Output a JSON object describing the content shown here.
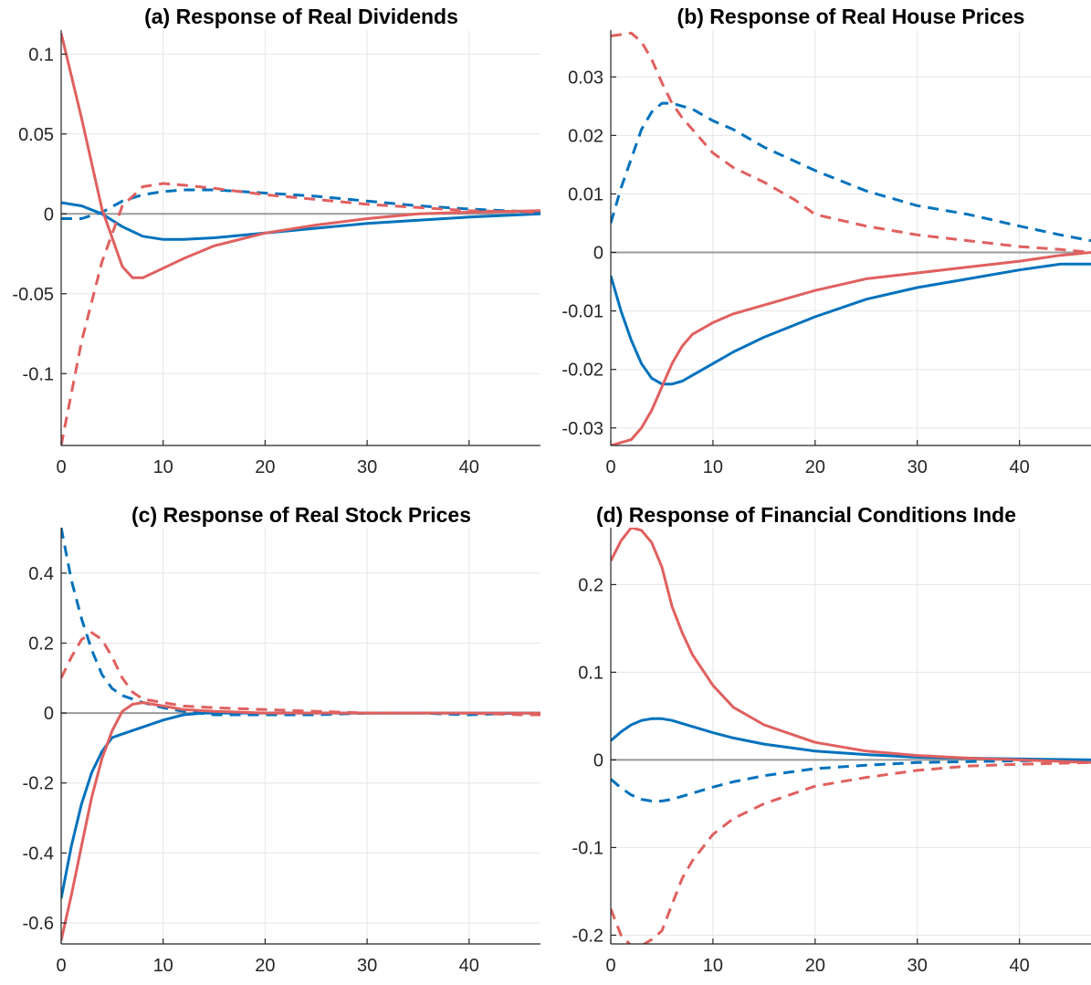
{
  "colors": {
    "blue": "#0072BD",
    "red": "#E0605F",
    "zero_line": "#9a9a9a",
    "grid": "#e6e6e6"
  },
  "chart_data": [
    {
      "type": "line",
      "title": "(a) Response of Real Dividends",
      "xlim": [
        0,
        47
      ],
      "ylim": [
        -0.145,
        0.115
      ],
      "xticks": [
        0,
        10,
        20,
        30,
        40
      ],
      "xtick_labels": [
        "0",
        "10",
        "20",
        "30",
        "40"
      ],
      "yticks": [
        0.1,
        0.05,
        0,
        -0.05,
        -0.1
      ],
      "ytick_labels": [
        "0.1",
        "0.05",
        "0",
        "-0.05",
        "-0.1"
      ],
      "grid": true,
      "series": [
        {
          "color": "blue",
          "style": "solid",
          "x": [
            0,
            2,
            4,
            6,
            8,
            10,
            12,
            15,
            20,
            25,
            30,
            35,
            40,
            47
          ],
          "y": [
            0.007,
            0.005,
            0.0,
            -0.008,
            -0.014,
            -0.016,
            -0.016,
            -0.015,
            -0.012,
            -0.009,
            -0.006,
            -0.004,
            -0.002,
            0.0
          ]
        },
        {
          "color": "blue",
          "style": "dashed",
          "x": [
            0,
            2,
            4,
            6,
            8,
            10,
            12,
            15,
            20,
            25,
            30,
            35,
            40,
            47
          ],
          "y": [
            -0.003,
            -0.003,
            0.001,
            0.008,
            0.012,
            0.014,
            0.015,
            0.015,
            0.013,
            0.011,
            0.008,
            0.005,
            0.003,
            0.001
          ]
        },
        {
          "color": "red",
          "style": "solid",
          "x": [
            0,
            2,
            4,
            6,
            7,
            8,
            10,
            12,
            15,
            20,
            25,
            30,
            35,
            40,
            47
          ],
          "y": [
            0.113,
            0.06,
            0.003,
            -0.033,
            -0.04,
            -0.04,
            -0.034,
            -0.028,
            -0.02,
            -0.012,
            -0.007,
            -0.003,
            0.0,
            0.001,
            0.002
          ]
        },
        {
          "color": "red",
          "style": "dashed",
          "x": [
            0,
            2,
            4,
            6,
            8,
            10,
            12,
            15,
            20,
            25,
            30,
            35,
            40,
            47
          ],
          "y": [
            -0.145,
            -0.08,
            -0.03,
            0.005,
            0.017,
            0.019,
            0.018,
            0.016,
            0.012,
            0.009,
            0.006,
            0.004,
            0.002,
            0.001
          ]
        }
      ]
    },
    {
      "type": "line",
      "title": "(b) Response of Real House Prices",
      "xlim": [
        0,
        47
      ],
      "ylim": [
        -0.033,
        0.038
      ],
      "xticks": [
        0,
        10,
        20,
        30,
        40
      ],
      "xtick_labels": [
        "0",
        "10",
        "20",
        "30",
        "40"
      ],
      "yticks": [
        0.03,
        0.02,
        0.01,
        0,
        -0.01,
        -0.02,
        -0.03
      ],
      "ytick_labels": [
        "0.03",
        "0.02",
        "0.01",
        "0",
        "-0.01",
        "-0.02",
        "-0.03"
      ],
      "grid": true,
      "series": [
        {
          "color": "blue",
          "style": "solid",
          "x": [
            0,
            1,
            2,
            3,
            4,
            5,
            6,
            7,
            8,
            10,
            12,
            15,
            20,
            25,
            30,
            35,
            40,
            44,
            47
          ],
          "y": [
            -0.004,
            -0.01,
            -0.015,
            -0.019,
            -0.0215,
            -0.0225,
            -0.0225,
            -0.022,
            -0.021,
            -0.019,
            -0.017,
            -0.0145,
            -0.011,
            -0.008,
            -0.006,
            -0.0045,
            -0.003,
            -0.002,
            -0.002
          ]
        },
        {
          "color": "blue",
          "style": "dashed",
          "x": [
            0,
            1,
            2,
            3,
            4,
            5,
            6,
            7,
            8,
            10,
            12,
            15,
            20,
            25,
            30,
            35,
            40,
            44,
            47
          ],
          "y": [
            0.005,
            0.011,
            0.016,
            0.021,
            0.024,
            0.0255,
            0.0255,
            0.025,
            0.0245,
            0.0225,
            0.021,
            0.018,
            0.014,
            0.0105,
            0.008,
            0.0065,
            0.0045,
            0.003,
            0.002
          ]
        },
        {
          "color": "red",
          "style": "solid",
          "x": [
            0,
            2,
            3,
            4,
            5,
            6,
            7,
            8,
            10,
            12,
            15,
            18,
            20,
            25,
            30,
            35,
            40,
            44,
            47
          ],
          "y": [
            -0.033,
            -0.032,
            -0.03,
            -0.027,
            -0.023,
            -0.019,
            -0.016,
            -0.014,
            -0.012,
            -0.0105,
            -0.009,
            -0.0075,
            -0.0065,
            -0.0045,
            -0.0035,
            -0.0025,
            -0.0015,
            -0.0005,
            0.0
          ]
        },
        {
          "color": "red",
          "style": "dashed",
          "x": [
            0,
            2,
            3,
            4,
            5,
            6,
            7,
            8,
            10,
            12,
            15,
            18,
            20,
            25,
            30,
            35,
            40,
            44,
            47
          ],
          "y": [
            0.037,
            0.0375,
            0.036,
            0.033,
            0.029,
            0.0255,
            0.023,
            0.021,
            0.017,
            0.0145,
            0.012,
            0.009,
            0.0065,
            0.0045,
            0.003,
            0.002,
            0.001,
            0.0005,
            0.0
          ]
        }
      ]
    },
    {
      "type": "line",
      "title": "(c) Response of Real Stock Prices",
      "xlim": [
        0,
        47
      ],
      "ylim": [
        -0.66,
        0.53
      ],
      "xticks": [
        0,
        10,
        20,
        30,
        40
      ],
      "xtick_labels": [
        "0",
        "10",
        "20",
        "30",
        "40"
      ],
      "yticks": [
        0.4,
        0.2,
        0,
        -0.2,
        -0.4,
        -0.6
      ],
      "ytick_labels": [
        "0.4",
        "0.2",
        "0",
        "-0.2",
        "-0.4",
        "-0.6"
      ],
      "grid": true,
      "series": [
        {
          "color": "blue",
          "style": "solid",
          "x": [
            0,
            1,
            2,
            3,
            4,
            5,
            6,
            8,
            10,
            12,
            14,
            20,
            30,
            40,
            47
          ],
          "y": [
            -0.53,
            -0.38,
            -0.26,
            -0.17,
            -0.11,
            -0.07,
            -0.06,
            -0.04,
            -0.02,
            -0.005,
            0.0,
            0.0,
            0.0,
            0.0,
            0.0
          ]
        },
        {
          "color": "blue",
          "style": "dashed",
          "x": [
            0,
            1,
            2,
            3,
            4,
            5,
            6,
            8,
            10,
            12,
            15,
            20,
            25,
            30,
            35,
            40,
            45,
            47
          ],
          "y": [
            0.53,
            0.38,
            0.27,
            0.18,
            0.11,
            0.07,
            0.05,
            0.03,
            0.015,
            0.005,
            -0.005,
            -0.005,
            -0.005,
            0.0,
            0.0,
            -0.005,
            0.0,
            0.0
          ]
        },
        {
          "color": "red",
          "style": "solid",
          "x": [
            0,
            1,
            2,
            3,
            4,
            5,
            6,
            7,
            8,
            10,
            12,
            15,
            20,
            30,
            40,
            47
          ],
          "y": [
            -0.65,
            -0.52,
            -0.38,
            -0.24,
            -0.13,
            -0.05,
            0.005,
            0.025,
            0.03,
            0.02,
            0.01,
            0.005,
            0.0,
            0.0,
            0.0,
            0.0
          ]
        },
        {
          "color": "red",
          "style": "dashed",
          "x": [
            0,
            1,
            2,
            3,
            4,
            5,
            6,
            7,
            8,
            10,
            12,
            15,
            20,
            25,
            30,
            35,
            40,
            45,
            47
          ],
          "y": [
            0.1,
            0.16,
            0.21,
            0.23,
            0.21,
            0.16,
            0.1,
            0.06,
            0.04,
            0.03,
            0.02,
            0.015,
            0.01,
            0.005,
            0.0,
            0.0,
            0.0,
            -0.005,
            -0.005
          ]
        }
      ]
    },
    {
      "type": "line",
      "title": "(d) Response of Financial Conditions Inde",
      "xlim": [
        0,
        47
      ],
      "ylim": [
        -0.21,
        0.265
      ],
      "xticks": [
        0,
        10,
        20,
        30,
        40
      ],
      "xtick_labels": [
        "0",
        "10",
        "20",
        "30",
        "40"
      ],
      "yticks": [
        0.2,
        0.1,
        0,
        -0.1,
        -0.2
      ],
      "ytick_labels": [
        "0.2",
        "0.1",
        "0",
        "-0.1",
        "-0.2"
      ],
      "grid": true,
      "series": [
        {
          "color": "blue",
          "style": "solid",
          "x": [
            0,
            1,
            2,
            3,
            4,
            5,
            6,
            8,
            10,
            12,
            15,
            20,
            25,
            30,
            35,
            40,
            47
          ],
          "y": [
            0.022,
            0.032,
            0.04,
            0.045,
            0.047,
            0.047,
            0.045,
            0.038,
            0.031,
            0.025,
            0.018,
            0.01,
            0.006,
            0.003,
            0.002,
            0.001,
            0.0
          ]
        },
        {
          "color": "blue",
          "style": "dashed",
          "x": [
            0,
            1,
            2,
            3,
            4,
            5,
            6,
            8,
            10,
            12,
            15,
            20,
            25,
            30,
            35,
            40,
            47
          ],
          "y": [
            -0.022,
            -0.032,
            -0.04,
            -0.045,
            -0.047,
            -0.047,
            -0.045,
            -0.038,
            -0.031,
            -0.025,
            -0.018,
            -0.01,
            -0.006,
            -0.003,
            -0.002,
            -0.001,
            0.0
          ]
        },
        {
          "color": "red",
          "style": "solid",
          "x": [
            0,
            1,
            2,
            3,
            4,
            5,
            6,
            7,
            8,
            10,
            12,
            15,
            20,
            25,
            30,
            35,
            40,
            47
          ],
          "y": [
            0.227,
            0.25,
            0.265,
            0.262,
            0.248,
            0.22,
            0.175,
            0.145,
            0.12,
            0.085,
            0.06,
            0.04,
            0.02,
            0.01,
            0.005,
            0.002,
            0.0,
            -0.003
          ]
        },
        {
          "color": "red",
          "style": "dashed",
          "x": [
            0,
            1,
            2,
            3,
            4,
            5,
            6,
            7,
            8,
            10,
            12,
            15,
            20,
            25,
            30,
            35,
            40,
            47
          ],
          "y": [
            -0.17,
            -0.2,
            -0.212,
            -0.212,
            -0.205,
            -0.195,
            -0.165,
            -0.135,
            -0.115,
            -0.085,
            -0.067,
            -0.05,
            -0.03,
            -0.02,
            -0.012,
            -0.007,
            -0.005,
            -0.003
          ]
        }
      ]
    }
  ]
}
